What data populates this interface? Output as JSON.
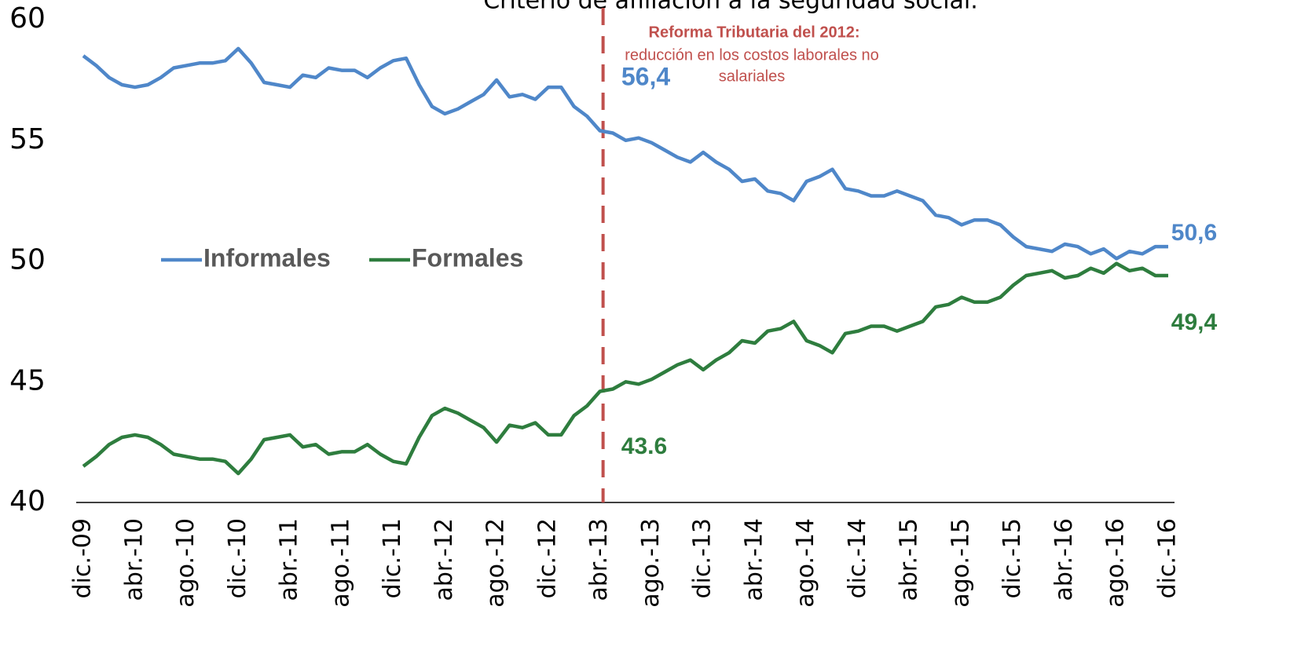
{
  "chart_data": {
    "type": "line",
    "title": "Criterio de afiliación a la seguridad social.",
    "categories": [
      "dic.-09",
      null,
      null,
      null,
      "abr.-10",
      null,
      null,
      null,
      "ago.-10",
      null,
      null,
      null,
      "dic.-10",
      null,
      null,
      null,
      "abr.-11",
      null,
      null,
      null,
      "ago.-11",
      null,
      null,
      null,
      "dic.-11",
      null,
      null,
      null,
      "abr.-12",
      null,
      null,
      null,
      "ago.-12",
      null,
      null,
      null,
      "dic.-12",
      null,
      null,
      null,
      "abr.-13",
      null,
      null,
      null,
      "ago.-13",
      null,
      null,
      null,
      "dic.-13",
      null,
      null,
      null,
      "abr.-14",
      null,
      null,
      null,
      "ago.-14",
      null,
      null,
      null,
      "dic.-14",
      null,
      null,
      null,
      "abr.-15",
      null,
      null,
      null,
      "ago.-15",
      null,
      null,
      null,
      "dic.-15",
      null,
      null,
      null,
      "abr.-16",
      null,
      null,
      null,
      "ago.-16",
      null,
      null,
      null,
      "dic.-16"
    ],
    "series": [
      {
        "name": "Informales",
        "color": "#4f87c9",
        "values": [
          58.5,
          58.1,
          57.6,
          57.3,
          57.2,
          57.3,
          57.6,
          58.0,
          58.1,
          58.2,
          58.2,
          58.3,
          58.8,
          58.2,
          57.4,
          57.3,
          57.2,
          57.7,
          57.6,
          58.0,
          57.9,
          57.9,
          57.6,
          58.0,
          58.3,
          58.4,
          57.3,
          56.4,
          56.1,
          56.3,
          56.6,
          56.9,
          57.5,
          56.8,
          56.9,
          56.7,
          57.2,
          57.2,
          56.4,
          56.0,
          55.4,
          55.3,
          55.0,
          55.1,
          54.9,
          54.6,
          54.3,
          54.1,
          54.5,
          54.1,
          53.8,
          53.3,
          53.4,
          52.9,
          52.8,
          52.5,
          53.3,
          53.5,
          53.8,
          53.0,
          52.9,
          52.7,
          52.7,
          52.9,
          52.7,
          52.5,
          51.9,
          51.8,
          51.5,
          51.7,
          51.7,
          51.5,
          51.0,
          50.6,
          50.5,
          50.4,
          50.7,
          50.6,
          50.3,
          50.5,
          50.1,
          50.4,
          50.3,
          50.6,
          50.6
        ]
      },
      {
        "name": "Formales",
        "color": "#2e7d3e",
        "values": [
          41.5,
          41.9,
          42.4,
          42.7,
          42.8,
          42.7,
          42.4,
          42.0,
          41.9,
          41.8,
          41.8,
          41.7,
          41.2,
          41.8,
          42.6,
          42.7,
          42.8,
          42.3,
          42.4,
          42.0,
          42.1,
          42.1,
          42.4,
          42.0,
          41.7,
          41.6,
          42.7,
          43.6,
          43.9,
          43.7,
          43.4,
          43.1,
          42.5,
          43.2,
          43.1,
          43.3,
          42.8,
          42.8,
          43.6,
          44.0,
          44.6,
          44.7,
          45.0,
          44.9,
          45.1,
          45.4,
          45.7,
          45.9,
          45.5,
          45.9,
          46.2,
          46.7,
          46.6,
          47.1,
          47.2,
          47.5,
          46.7,
          46.5,
          46.2,
          47.0,
          47.1,
          47.3,
          47.3,
          47.1,
          47.3,
          47.5,
          48.1,
          48.2,
          48.5,
          48.3,
          48.3,
          48.5,
          49.0,
          49.4,
          49.5,
          49.6,
          49.3,
          49.4,
          49.7,
          49.5,
          49.9,
          49.6,
          49.7,
          49.4,
          49.4
        ]
      }
    ],
    "ylim": [
      40,
      60
    ],
    "yticks": [
      40,
      45,
      50,
      55,
      60
    ],
    "legend": "center",
    "annotations": [
      {
        "text": "Reforma Tributaria del 2012:",
        "color": "#c0504d"
      },
      {
        "text": "reducción en los costos laborales no",
        "color": "#c0504d"
      },
      {
        "text": "salariales",
        "color": "#c0504d"
      },
      {
        "text": "56,4",
        "color": "#4f87c9"
      },
      {
        "text": "43.6",
        "color": "#2e7d3e"
      },
      {
        "text": "50,6",
        "color": "#4f87c9"
      },
      {
        "text": "49,4",
        "color": "#2e7d3e"
      }
    ],
    "reference_line": {
      "category": "abr.-13",
      "color": "#c0504d"
    }
  }
}
